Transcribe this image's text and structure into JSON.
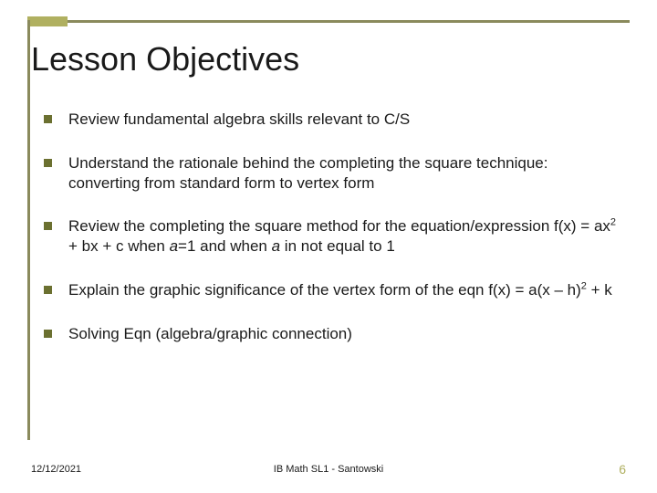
{
  "colors": {
    "border": "#8a8a5c",
    "accent": "#b0b060",
    "bullet": "#6b7030",
    "text": "#1a1a1a",
    "background": "#ffffff"
  },
  "title": "Lesson Objectives",
  "bullets": [
    {
      "text": "Review fundamental algebra skills relevant to C/S"
    },
    {
      "text": "Understand the rationale behind the completing the square technique:  converting from standard form to vertex form"
    },
    {
      "pre": "Review the completing the square  method  for the equation/expression f(x) = ax",
      "sup1": "2",
      "mid": " + bx + c when ",
      "ital1": "a",
      "mid2": "=1 and when ",
      "ital2": "a",
      "post": " in not  equal to 1"
    },
    {
      "pre": "Explain the graphic significance of the vertex form of the eqn f(x) = a(x – h)",
      "sup1": "2",
      "post": " + k"
    },
    {
      "text": "Solving Eqn (algebra/graphic connection)"
    }
  ],
  "footer": {
    "date": "12/12/2021",
    "center": "IB Math SL1 - Santowski",
    "page": "6"
  }
}
